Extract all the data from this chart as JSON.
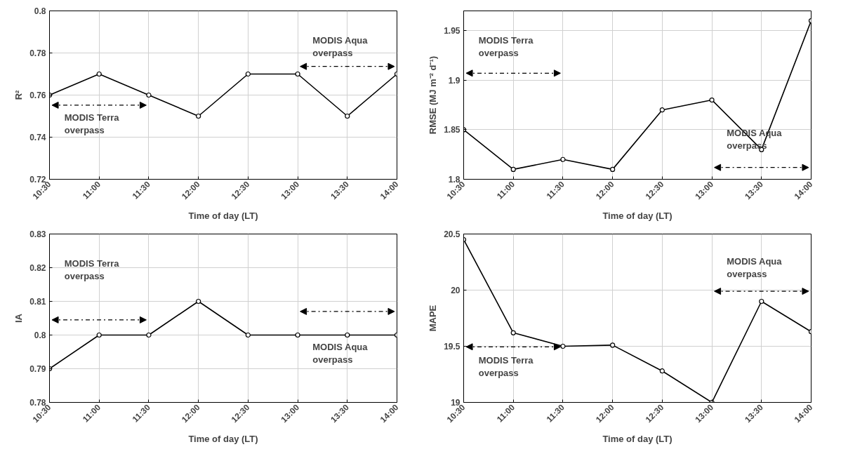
{
  "chart_data": [
    {
      "type": "line",
      "ylabel": "R²",
      "xlabel": "Time of day (LT)",
      "categories": [
        "10:30",
        "11:00",
        "11:30",
        "12:00",
        "12:30",
        "13:00",
        "13:30",
        "14:00"
      ],
      "series": [
        {
          "color": "#000000",
          "values": [
            0.76,
            0.77,
            0.76,
            0.75,
            0.77,
            0.77,
            0.75,
            0.77
          ]
        }
      ],
      "ylim": [
        0.72,
        0.8
      ],
      "yticks": [
        0.72,
        0.74,
        0.76,
        0.78,
        0.8
      ],
      "grid": true,
      "marker": "circle",
      "line_style": "solid",
      "annotations": [
        "MODIS Terra\noverpass",
        "MODIS Aqua\noverpass"
      ]
    },
    {
      "type": "line",
      "ylabel": "RMSE (MJ m⁻² d⁻¹)",
      "xlabel": "Time of day (LT)",
      "categories": [
        "10:30",
        "11:00",
        "11:30",
        "12:00",
        "12:30",
        "13:00",
        "13:30",
        "14:00"
      ],
      "series": [
        {
          "color": "#000000",
          "values": [
            1.85,
            1.81,
            1.82,
            1.81,
            1.87,
            1.88,
            1.83,
            1.96
          ]
        }
      ],
      "ylim": [
        1.8,
        1.97
      ],
      "yticks": [
        1.8,
        1.85,
        1.9,
        1.95
      ],
      "grid": true,
      "marker": "circle",
      "line_style": "solid",
      "annotations": [
        "MODIS Terra\noverpass",
        "MODIS Aqua\noverpass"
      ]
    },
    {
      "type": "line",
      "ylabel": "IA",
      "xlabel": "Time of day (LT)",
      "categories": [
        "10:30",
        "11:00",
        "11:30",
        "12:00",
        "12:30",
        "13:00",
        "13:30",
        "14:00"
      ],
      "series": [
        {
          "color": "#000000",
          "values": [
            0.79,
            0.8,
            0.8,
            0.81,
            0.8,
            0.8,
            0.8,
            0.8
          ]
        }
      ],
      "ylim": [
        0.78,
        0.83
      ],
      "yticks": [
        0.78,
        0.79,
        0.8,
        0.81,
        0.82,
        0.83
      ],
      "grid": true,
      "marker": "circle",
      "line_style": "solid",
      "annotations": [
        "MODIS Terra\noverpass",
        "MODIS Aqua\noverpass"
      ]
    },
    {
      "type": "line",
      "ylabel": "MAPE",
      "xlabel": "Time of day (LT)",
      "categories": [
        "10:30",
        "11:00",
        "11:30",
        "12:00",
        "12:30",
        "13:00",
        "13:30",
        "14:00"
      ],
      "series": [
        {
          "color": "#000000",
          "values": [
            20.45,
            19.62,
            19.5,
            19.51,
            19.28,
            19.0,
            19.9,
            19.63
          ]
        }
      ],
      "ylim": [
        19,
        20.5
      ],
      "yticks": [
        19,
        19.5,
        20,
        20.5
      ],
      "grid": true,
      "marker": "circle",
      "line_style": "solid",
      "annotations": [
        "MODIS Terra\noverpass",
        "MODIS Aqua\noverpass"
      ]
    }
  ]
}
